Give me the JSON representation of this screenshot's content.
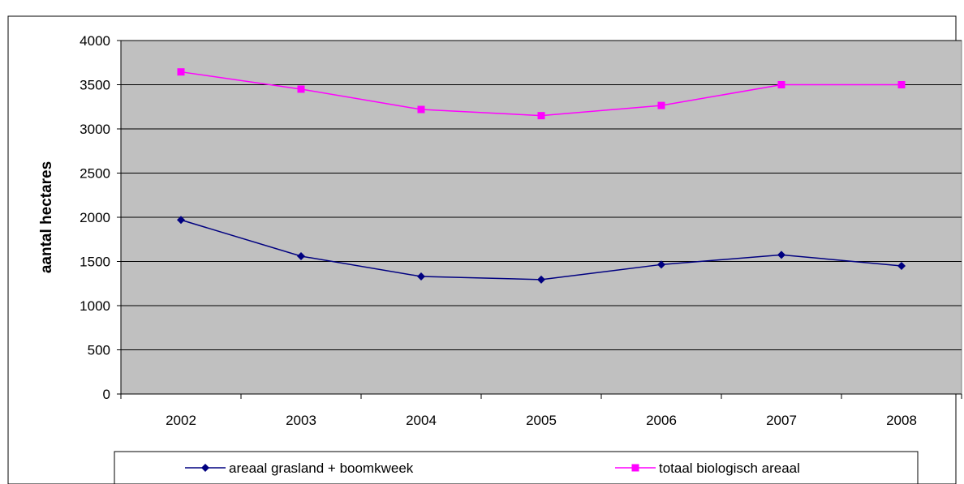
{
  "header_text": "",
  "chart_data": {
    "type": "line",
    "title": "",
    "xlabel": "",
    "ylabel": "aantal hectares",
    "categories": [
      "2002",
      "2003",
      "2004",
      "2005",
      "2006",
      "2007",
      "2008"
    ],
    "ylim": [
      0,
      4000
    ],
    "yticks": [
      0,
      500,
      1000,
      1500,
      2000,
      2500,
      3000,
      3500,
      4000
    ],
    "grid": true,
    "legend_position": "bottom",
    "plot_background": "#c0c0c0",
    "series": [
      {
        "name": "areaal grasland + boomkweek",
        "values": [
          1970,
          1560,
          1330,
          1295,
          1465,
          1575,
          1450
        ],
        "color": "#000080",
        "marker": "diamond"
      },
      {
        "name": "totaal biologisch areaal",
        "values": [
          3645,
          3450,
          3220,
          3150,
          3265,
          3500,
          3500
        ],
        "color": "#ff00ff",
        "marker": "square"
      }
    ]
  }
}
